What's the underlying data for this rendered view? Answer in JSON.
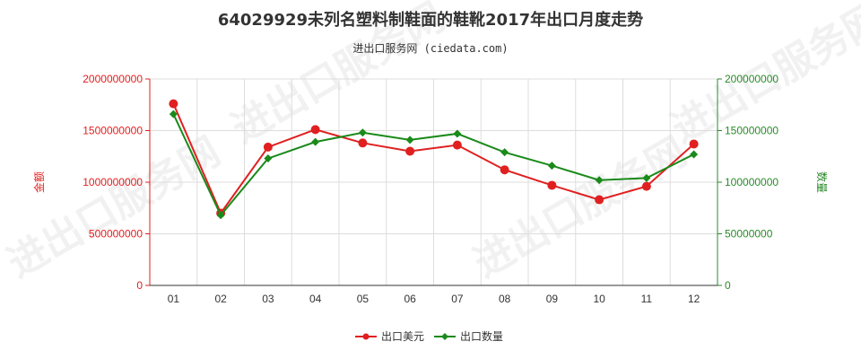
{
  "chart_data": {
    "type": "line",
    "title": "64029929未列名塑料制鞋面的鞋靴2017年出口月度走势",
    "subtitle": "进出口服务网 (ciedata.com)",
    "watermark": "进出口服务网",
    "categories": [
      "01",
      "02",
      "03",
      "04",
      "05",
      "06",
      "07",
      "08",
      "09",
      "10",
      "11",
      "12"
    ],
    "ylabel_left": "金额",
    "ylabel_right": "数量",
    "ylim_left": [
      0,
      2000000000
    ],
    "ylim_right": [
      0,
      200000000
    ],
    "yticks_left": [
      "0",
      "500000000",
      "1000000000",
      "1500000000",
      "2000000000"
    ],
    "yticks_right": [
      "0",
      "50000000",
      "100000000",
      "150000000",
      "200000000"
    ],
    "grid": true,
    "legend_position": "bottom",
    "series": [
      {
        "name": "出口美元",
        "axis": "left",
        "color": "#e02020",
        "marker": "circle",
        "values": [
          1760000000,
          700000000,
          1340000000,
          1510000000,
          1380000000,
          1300000000,
          1360000000,
          1120000000,
          970000000,
          830000000,
          960000000,
          1370000000
        ]
      },
      {
        "name": "出口数量",
        "axis": "right",
        "color": "#1a8a1a",
        "marker": "diamond",
        "values": [
          166000000,
          68000000,
          123000000,
          139000000,
          148000000,
          141000000,
          147000000,
          129000000,
          116000000,
          102000000,
          104000000,
          127000000
        ]
      }
    ]
  }
}
